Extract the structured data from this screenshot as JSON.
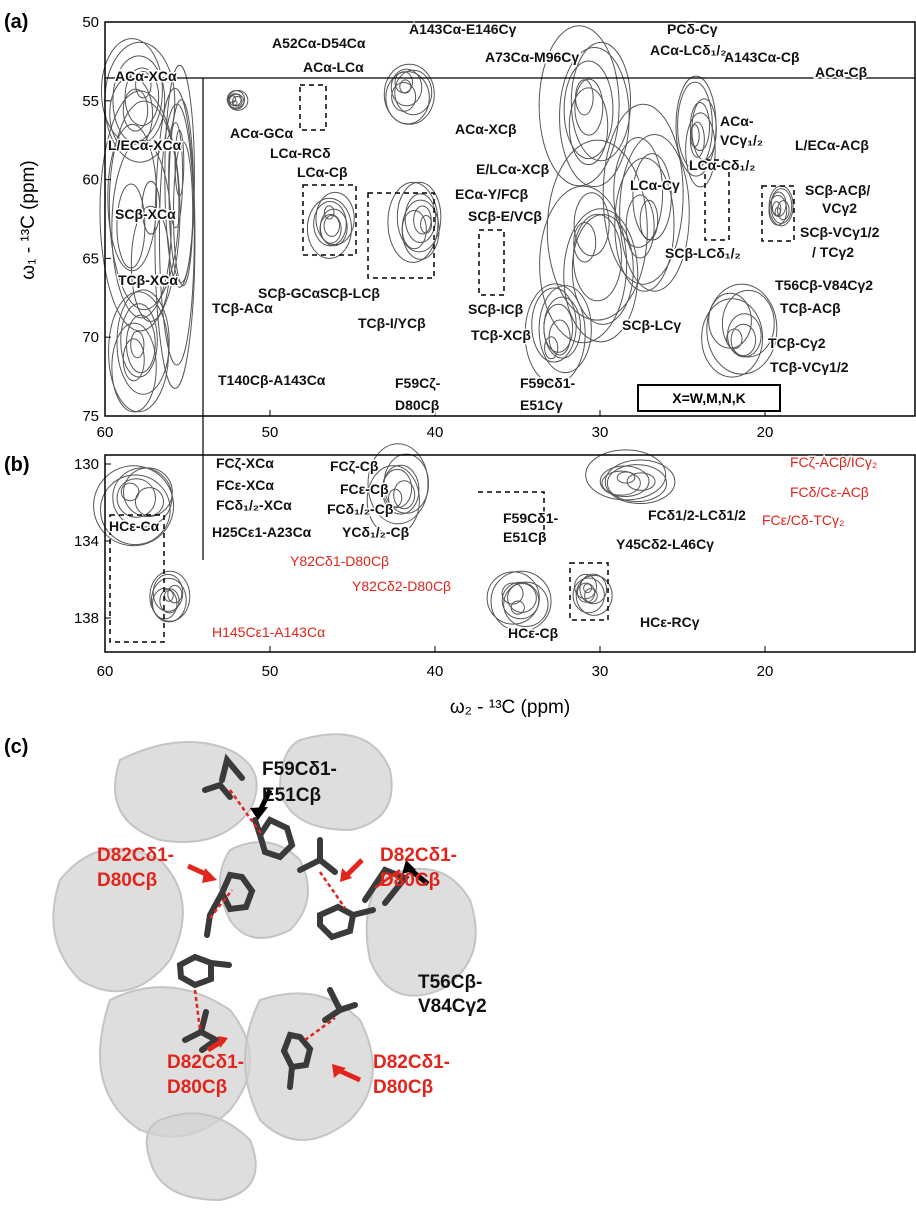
{
  "annotation_color": "#111111",
  "highlight_color": "#e3241b",
  "panel_a": {
    "label": "(a)",
    "y_axis_label": "ω₁ - ¹³C (ppm)",
    "xticks": [
      60,
      50,
      40,
      30,
      20
    ],
    "yticks": [
      50,
      55,
      60,
      65,
      70,
      75
    ],
    "legend_box": "X=W,M,N,K",
    "annotations": [
      "A52Cα-D54Cα",
      "A143Cα-E146Cγ",
      "PCδ-Cγ",
      "ACα-LCδ₁/₂",
      "A143Cα-Cβ",
      "ACα-Cβ",
      "A73Cα-M96Cγ",
      "ACα-LCα",
      "ACα-XCα",
      "ACα-GCα",
      "LCα-RCδ",
      "LCα-Cβ",
      "ACα-XCβ",
      "L/ECα-XCα",
      "E/LCα-XCβ",
      "ECα-Y/FCβ",
      "SCβ-E/VCβ",
      "ACα-",
      "VCγ₁/₂",
      "L/ECα-ACβ",
      "LCα-Cδ₁/₂",
      "LCα-Cγ",
      "SCβ-XCα",
      "SCβ-ACβ/",
      "VCγ2",
      "SCβ-VCγ1/2",
      "/ TCγ2",
      "SCβ-LCδ₁/₂",
      "SCβ-GCα",
      "SCβ-LCβ",
      "TCβ-XCα",
      "TCβ-ACα",
      "TCβ-I/YCβ",
      "SCβ-ICβ",
      "TCβ-XCβ",
      "SCβ-LCγ",
      "T56Cβ-V84Cγ2",
      "TCβ-ACβ",
      "TCβ-Cγ2",
      "TCβ-VCγ1/2",
      "T140Cβ-A143Cα",
      "F59Cζ-",
      "D80Cβ",
      "F59Cδ1-",
      "E51Cγ"
    ]
  },
  "panel_b": {
    "label": "(b)",
    "x_axis_label": "ω₂ - ¹³C (ppm)",
    "xticks": [
      60,
      50,
      40,
      30,
      20
    ],
    "yticks": [
      130,
      134,
      138
    ],
    "annotations": [
      "FCζ-XCα",
      "FCζ-Cβ",
      "FCε-XCα",
      "FCε-Cβ",
      "FCδ₁/₂-XCα",
      "FCδ₁/₂-Cβ",
      "YCδ₁/₂-Cβ",
      "HCε-Cα",
      "H25Cε1-A23Cα",
      "F59Cδ1-",
      "E51Cβ",
      "FCδ1/2-LCδ1/2",
      "Y45Cδ2-L46Cγ",
      "HCε-RCγ",
      "HCε-Cβ"
    ],
    "red_annotations": [
      "FCζ-ACβ/ICγ₂",
      "FCδ/Cε-ACβ",
      "FCε/Cδ-TCγ₂",
      "Y82Cδ1-D80Cβ",
      "Y82Cδ2-D80Cβ",
      "H145Cε1-A143Cα"
    ]
  },
  "panel_c": {
    "label": "(c)",
    "annotations": [
      "F59Cδ1-",
      "E51Cβ",
      "T56Cβ-",
      "V84Cγ2"
    ],
    "red_annotations": [
      "D82Cδ1-",
      "D80Cβ",
      "D82Cδ1-",
      "D80Cβ",
      "D82Cδ1-",
      "D80Cβ",
      "D82Cδ1-",
      "D80Cβ"
    ]
  }
}
